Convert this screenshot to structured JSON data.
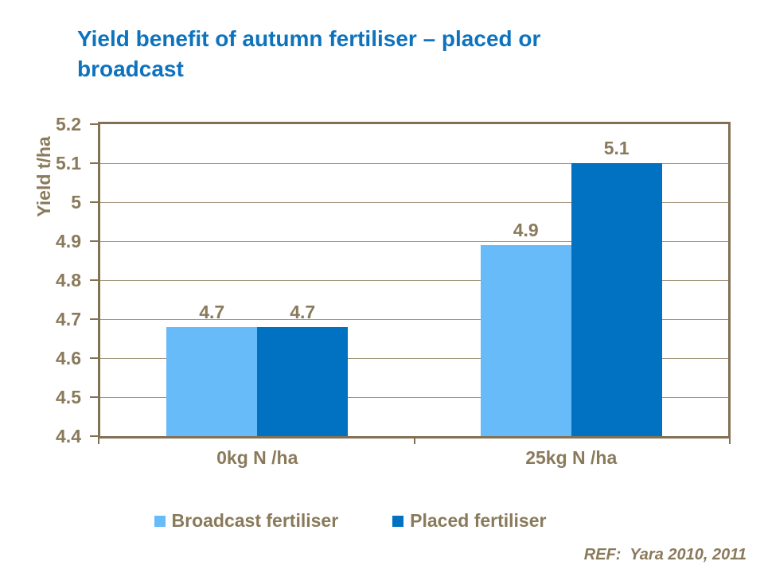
{
  "slide": {
    "title_lines": [
      "Yield benefit of autumn fertiliser – placed or",
      "broadcast"
    ],
    "title_color": "#0E73BE",
    "reference": "REF:  Yara 2010, 2011",
    "background_color": "#FFFFFF"
  },
  "chart_data": {
    "type": "bar",
    "title": "Yield benefit of autumn fertiliser – placed or broadcast",
    "categories": [
      "0kg N /ha",
      "25kg N /ha"
    ],
    "series": [
      {
        "name": "Broadcast fertiliser",
        "color": "#68BBF9",
        "values": [
          4.68,
          4.89
        ],
        "data_labels": [
          "4.7",
          "4.9"
        ]
      },
      {
        "name": "Placed fertiliser",
        "color": "#0171C2",
        "values": [
          4.68,
          5.1
        ],
        "data_labels": [
          "4.7",
          "5.1"
        ]
      }
    ],
    "xlabel": "",
    "ylabel": "Yield t/ha",
    "ylim": [
      4.4,
      5.2
    ],
    "yticks": [
      5.2,
      5.1,
      5.0,
      4.9,
      4.8,
      4.7,
      4.6,
      4.5,
      4.4
    ],
    "ytick_labels": [
      "5.2",
      "5.1",
      "5",
      "4.9",
      "4.8",
      "4.7",
      "4.6",
      "4.5",
      "4.4"
    ],
    "grid": true,
    "legend_position": "bottom",
    "legend": [
      "Broadcast fertiliser",
      "Placed fertiliser"
    ],
    "text_color": "#8A7A5C",
    "axis_color": "#837155",
    "gridline_color": "#A4967C"
  }
}
